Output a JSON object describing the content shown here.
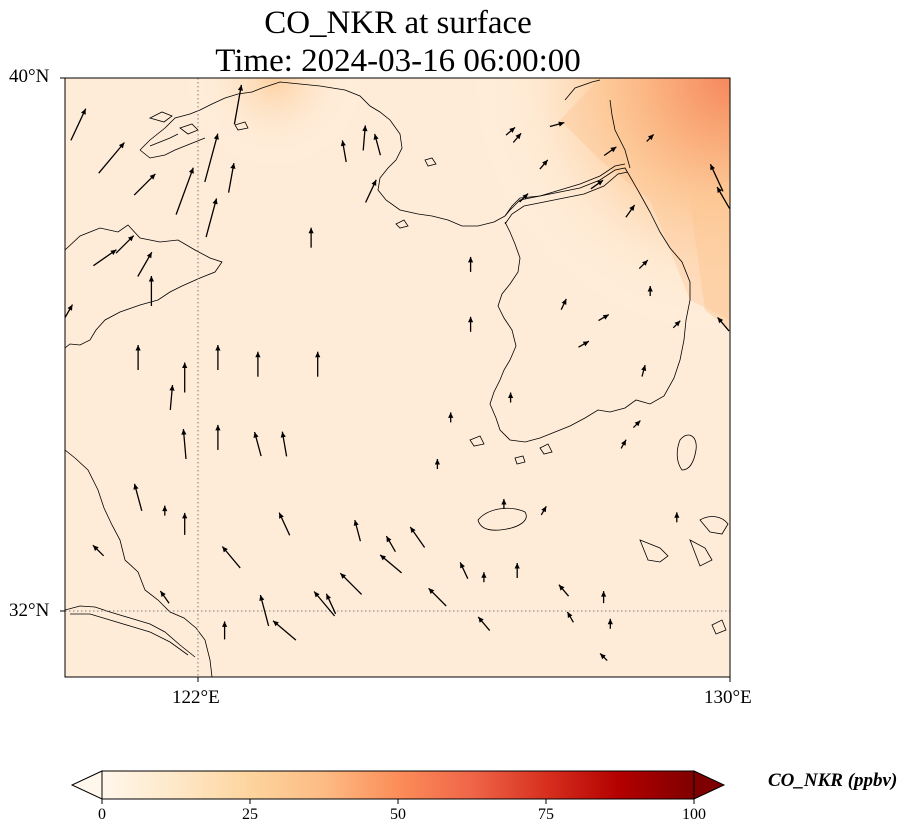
{
  "title": {
    "line1": "CO_NKR at surface",
    "line2": "Time: 2024-03-16 06:00:00"
  },
  "map": {
    "lon_range": [
      120,
      130
    ],
    "lat_range": [
      31,
      40
    ],
    "gridlines": {
      "lon": [
        122
      ],
      "lat": [
        32
      ],
      "style": "dotted"
    },
    "lat_ticks": [
      {
        "value": 40,
        "label": "40°N"
      },
      {
        "value": 32,
        "label": "32°N"
      }
    ],
    "lon_ticks": [
      {
        "value": 122,
        "label": "122°E"
      },
      {
        "value": 130,
        "label": "130°E"
      }
    ],
    "field_colors": {
      "background": "#fff5ea",
      "low": "#fee7cf",
      "mid": "#fdc08a",
      "high": "#f26b45"
    },
    "wind_arrow_color": "#000000"
  },
  "colorbar": {
    "title": "CO_NKR (ppbv)",
    "ticks": [
      {
        "value": 0,
        "label": "0"
      },
      {
        "value": 25,
        "label": "25"
      },
      {
        "value": 50,
        "label": "50"
      },
      {
        "value": 75,
        "label": "75"
      },
      {
        "value": 100,
        "label": "100"
      }
    ],
    "range": [
      0,
      100
    ],
    "extend": "both",
    "colormap": "OrRd",
    "stops": [
      "#fff7ec",
      "#fee8c8",
      "#fdd49e",
      "#fdbb84",
      "#fc8d59",
      "#ef6548",
      "#d7301f",
      "#b30000",
      "#7f0000"
    ]
  },
  "wind_arrows": [
    [
      120.2,
      39.3,
      25,
      35
    ],
    [
      120.7,
      38.8,
      40,
      40
    ],
    [
      121.2,
      38.4,
      45,
      30
    ],
    [
      120.9,
      37.5,
      45,
      25
    ],
    [
      121.2,
      37.2,
      30,
      28
    ],
    [
      120.0,
      36.4,
      30,
      30
    ],
    [
      120.6,
      37.3,
      55,
      28
    ],
    [
      121.8,
      38.3,
      20,
      50
    ],
    [
      122.2,
      38.8,
      15,
      50
    ],
    [
      122.6,
      39.6,
      10,
      40
    ],
    [
      122.2,
      37.9,
      15,
      40
    ],
    [
      122.5,
      38.5,
      10,
      30
    ],
    [
      121.3,
      36.8,
      0,
      30
    ],
    [
      121.1,
      35.8,
      0,
      25
    ],
    [
      121.6,
      35.2,
      5,
      25
    ],
    [
      121.8,
      34.5,
      -5,
      30
    ],
    [
      122.3,
      34.6,
      0,
      25
    ],
    [
      122.9,
      34.5,
      -15,
      25
    ],
    [
      121.8,
      35.5,
      0,
      30
    ],
    [
      122.3,
      35.8,
      0,
      25
    ],
    [
      122.9,
      35.7,
      0,
      25
    ],
    [
      123.3,
      34.5,
      -10,
      25
    ],
    [
      123.8,
      35.7,
      0,
      25
    ],
    [
      123.7,
      37.6,
      0,
      20
    ],
    [
      124.2,
      38.9,
      -10,
      22
    ],
    [
      124.5,
      39.1,
      5,
      25
    ],
    [
      124.7,
      39.0,
      -15,
      22
    ],
    [
      121.1,
      33.7,
      -15,
      28
    ],
    [
      121.8,
      33.3,
      0,
      22
    ],
    [
      123.3,
      33.3,
      -25,
      25
    ],
    [
      124.4,
      33.2,
      -15,
      22
    ],
    [
      124.0,
      32.1,
      -25,
      22
    ],
    [
      124.9,
      33.0,
      -30,
      18
    ],
    [
      122.5,
      32.8,
      -40,
      28
    ],
    [
      122.4,
      31.7,
      0,
      18
    ],
    [
      123.0,
      32.0,
      -15,
      32
    ],
    [
      123.3,
      31.7,
      -50,
      30
    ],
    [
      123.9,
      32.1,
      -40,
      32
    ],
    [
      124.3,
      32.4,
      -45,
      30
    ],
    [
      124.9,
      32.7,
      -50,
      28
    ],
    [
      125.3,
      33.1,
      -35,
      25
    ],
    [
      125.6,
      32.2,
      -45,
      25
    ],
    [
      126.3,
      31.8,
      -40,
      18
    ],
    [
      126.0,
      32.6,
      -25,
      18
    ],
    [
      126.8,
      32.6,
      0,
      15
    ],
    [
      127.5,
      32.3,
      -40,
      15
    ],
    [
      128.1,
      32.2,
      0,
      12
    ],
    [
      127.6,
      31.9,
      -30,
      12
    ],
    [
      128.1,
      31.3,
      -45,
      10
    ],
    [
      126.3,
      32.5,
      0,
      10
    ],
    [
      128.2,
      31.8,
      0,
      10
    ],
    [
      126.1,
      37.2,
      0,
      15
    ],
    [
      126.1,
      36.3,
      0,
      15
    ],
    [
      125.8,
      34.9,
      0,
      10
    ],
    [
      125.6,
      34.2,
      0,
      10
    ],
    [
      126.7,
      35.2,
      0,
      10
    ],
    [
      127.5,
      36.6,
      25,
      12
    ],
    [
      127.8,
      36.0,
      60,
      12
    ],
    [
      128.1,
      36.4,
      60,
      12
    ],
    [
      128.7,
      37.2,
      45,
      12
    ],
    [
      128.7,
      35.6,
      15,
      12
    ],
    [
      129.2,
      36.3,
      45,
      10
    ],
    [
      126.9,
      38.2,
      45,
      12
    ],
    [
      128.5,
      38.0,
      35,
      15
    ],
    [
      127.2,
      38.7,
      40,
      12
    ],
    [
      126.7,
      39.2,
      50,
      12
    ],
    [
      126.8,
      39.1,
      40,
      12
    ],
    [
      129.8,
      38.5,
      -25,
      30
    ],
    [
      129.9,
      38.2,
      -30,
      25
    ],
    [
      129.9,
      36.3,
      -40,
      18
    ],
    [
      128.8,
      36.8,
      0,
      10
    ],
    [
      126.6,
      33.6,
      0,
      10
    ],
    [
      127.2,
      33.5,
      30,
      10
    ],
    [
      128.6,
      34.8,
      45,
      10
    ],
    [
      129.2,
      33.4,
      0,
      10
    ],
    [
      128.4,
      34.5,
      30,
      10
    ],
    [
      128.8,
      39.1,
      45,
      10
    ],
    [
      128.2,
      38.9,
      55,
      15
    ],
    [
      127.4,
      39.3,
      75,
      15
    ],
    [
      128.0,
      38.4,
      55,
      15
    ],
    [
      121.5,
      32.2,
      -35,
      15
    ],
    [
      120.5,
      32.9,
      -45,
      15
    ],
    [
      121.5,
      33.5,
      0,
      10
    ],
    [
      124.6,
      38.3,
      25,
      25
    ],
    [
      126.5,
      39.1,
      0,
      0
    ]
  ]
}
